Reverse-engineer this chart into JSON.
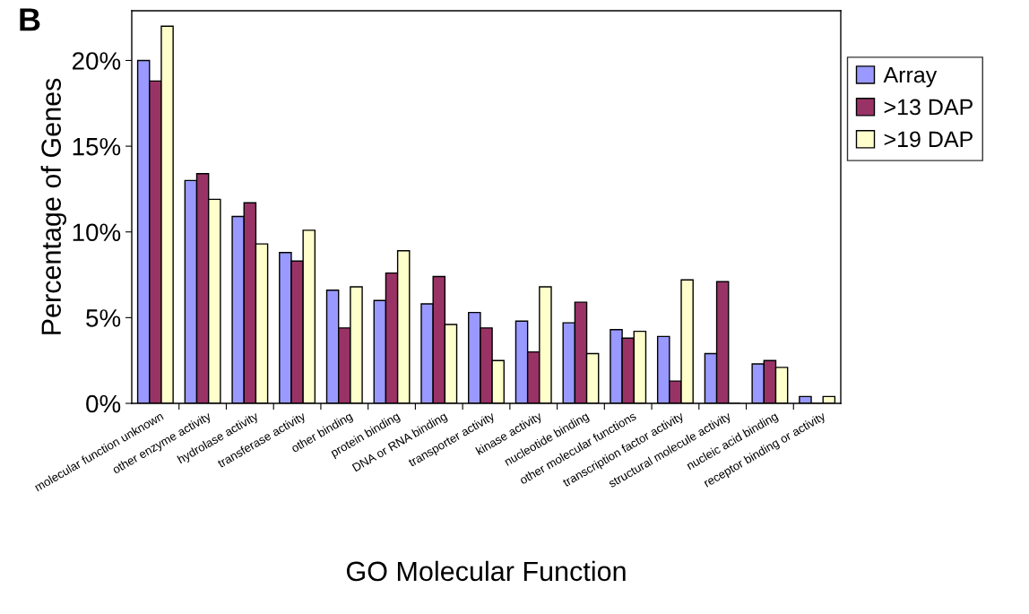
{
  "chart_data": {
    "type": "bar",
    "xlabel": "GO Molecular Function",
    "ylabel": "Percentage of Genes",
    "annotations": [
      "B"
    ],
    "categories": [
      "molecular function unknown",
      "other enzyme activity",
      "hydrolase activity",
      "transferase activity",
      "other binding",
      "protein binding",
      "DNA or RNA binding",
      "transporter activity",
      "kinase activity",
      "nucleotide binding",
      "other molecular functions",
      "transcription factor activity",
      "structural molecule activity",
      "nucleic acid binding",
      "receptor binding or activity"
    ],
    "series": [
      {
        "name": "Array",
        "color": "#9999ff",
        "values": [
          20.0,
          13.0,
          10.9,
          8.8,
          6.6,
          6.0,
          5.8,
          5.3,
          4.8,
          4.7,
          4.3,
          3.9,
          2.9,
          2.3,
          0.4
        ]
      },
      {
        "name": ">13 DAP",
        "color": "#993366",
        "values": [
          18.8,
          13.4,
          11.7,
          8.3,
          4.4,
          7.6,
          7.4,
          4.4,
          3.0,
          5.9,
          3.8,
          1.3,
          7.1,
          2.5,
          0
        ]
      },
      {
        "name": ">19 DAP",
        "color": "#ffffcc",
        "values": [
          22.0,
          11.9,
          9.3,
          10.1,
          6.8,
          8.9,
          4.6,
          2.5,
          6.8,
          2.9,
          4.2,
          7.2,
          0,
          2.1,
          0.4
        ]
      }
    ],
    "ylim": [
      0,
      22.9
    ],
    "yticks": [
      {
        "value": 0,
        "label": "0%"
      },
      {
        "value": 5,
        "label": "5%"
      },
      {
        "value": 10,
        "label": "10%"
      },
      {
        "value": 15,
        "label": "15%"
      },
      {
        "value": 20,
        "label": "20%"
      }
    ],
    "grid": false,
    "legend": "right"
  }
}
